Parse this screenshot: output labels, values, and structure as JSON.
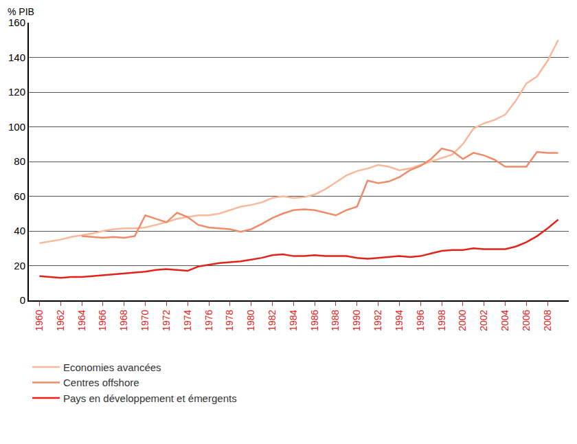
{
  "chart_data": {
    "type": "line",
    "y_label": "% PIB",
    "x": [
      1960,
      1961,
      1962,
      1963,
      1964,
      1965,
      1966,
      1967,
      1968,
      1969,
      1970,
      1971,
      1972,
      1973,
      1974,
      1975,
      1976,
      1977,
      1978,
      1979,
      1980,
      1981,
      1982,
      1983,
      1984,
      1985,
      1986,
      1987,
      1988,
      1989,
      1990,
      1991,
      1992,
      1993,
      1994,
      1995,
      1996,
      1997,
      1998,
      1999,
      2000,
      2001,
      2002,
      2003,
      2004,
      2005,
      2006,
      2007,
      2008,
      2009
    ],
    "series": [
      {
        "name": "Economies avancées",
        "color": "#f9b899",
        "values": [
          33,
          34,
          35,
          36.5,
          37.5,
          38.5,
          40,
          41,
          41.5,
          41.5,
          42,
          43.5,
          45,
          47,
          48,
          49,
          49,
          50,
          52,
          54,
          55,
          56.5,
          59,
          60,
          59,
          59.5,
          61,
          64,
          68,
          72,
          74.5,
          76,
          78,
          77,
          75,
          76,
          78,
          80,
          82,
          84,
          90,
          99,
          102,
          104,
          107,
          115,
          125,
          129,
          138,
          150
        ]
      },
      {
        "name": "Centres offshore",
        "color": "#f08a68",
        "values": [
          null,
          null,
          null,
          null,
          37,
          36.5,
          36,
          36.5,
          36,
          37,
          49,
          47,
          45,
          50.5,
          48,
          43.5,
          42,
          41.5,
          41,
          39.5,
          41,
          44,
          47.5,
          50,
          52,
          52.5,
          52,
          50.5,
          49,
          52,
          54,
          69,
          67.5,
          68.5,
          71,
          75,
          77.5,
          81.5,
          87.5,
          86,
          81.5,
          85,
          83.5,
          81,
          77,
          77,
          77,
          85.5,
          85,
          85
        ]
      },
      {
        "name": "Pays en développement et émergents",
        "color": "#e2231a",
        "values": [
          14,
          13.5,
          13,
          13.5,
          13.5,
          14,
          14.5,
          15,
          15.5,
          16,
          16.5,
          17.5,
          18,
          17.5,
          17,
          19.5,
          20.5,
          21.5,
          22,
          22.5,
          23.5,
          24.5,
          26,
          26.5,
          25.5,
          25.5,
          26,
          25.5,
          25.5,
          25.5,
          24.5,
          24,
          24.5,
          25,
          25.5,
          25,
          25.5,
          27,
          28.5,
          29,
          29,
          30,
          29.5,
          29.5,
          29.5,
          31,
          33.5,
          37,
          41.5,
          46.5
        ]
      }
    ],
    "xlim": [
      1959,
      2010
    ],
    "xticks": [
      1960,
      1962,
      1964,
      1966,
      1968,
      1970,
      1972,
      1974,
      1976,
      1978,
      1980,
      1982,
      1984,
      1986,
      1988,
      1990,
      1992,
      1994,
      1996,
      1998,
      2000,
      2002,
      2004,
      2006,
      2008
    ],
    "ylim": [
      0,
      160
    ],
    "yticks": [
      0,
      20,
      40,
      60,
      80,
      100,
      120,
      140,
      160
    ],
    "grid": true,
    "legend": "bottom-left"
  }
}
